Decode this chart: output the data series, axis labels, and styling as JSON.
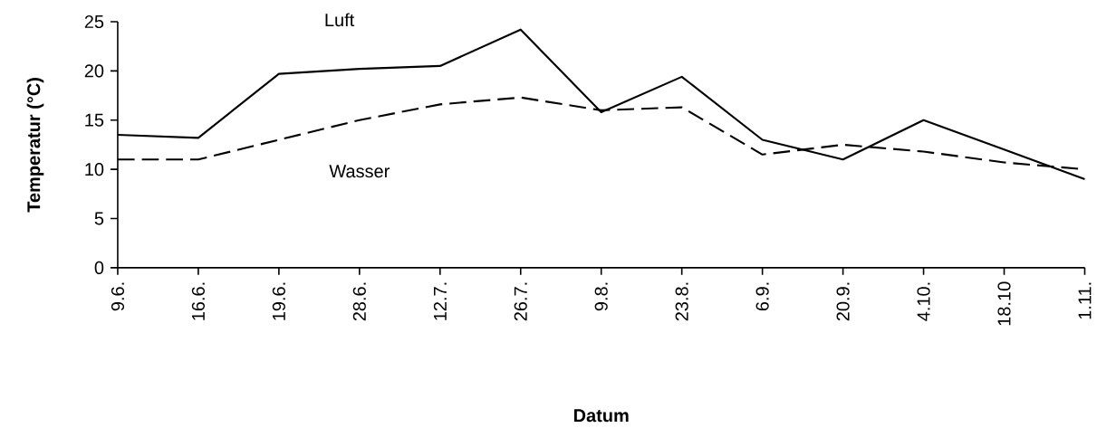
{
  "chart_data": {
    "type": "line",
    "xlabel": "Datum",
    "ylabel": "Temperatur   (°C)",
    "categories": [
      "9.6.",
      "16.6.",
      "19.6.",
      "28.6.",
      "12.7.",
      "26.7.",
      "9.8.",
      "23.8.",
      "6.9.",
      "20.9.",
      "4.10.",
      "18.10",
      "1.11."
    ],
    "series": [
      {
        "name": "Luft",
        "color": "#000000",
        "line_style": "solid",
        "values": [
          13.5,
          13.2,
          19.7,
          20.2,
          20.5,
          24.2,
          15.8,
          19.4,
          13,
          11,
          15,
          12,
          9
        ]
      },
      {
        "name": "Wasser",
        "color": "#000000",
        "line_style": "dashed",
        "values": [
          11,
          11,
          13,
          15,
          16.6,
          17.3,
          16,
          16.3,
          11.5,
          12.5,
          11.8,
          10.7,
          10
        ]
      }
    ],
    "ylim": [
      0,
      25
    ],
    "yticks": [
      0,
      5,
      10,
      15,
      20,
      25
    ],
    "grid": false,
    "legend": false,
    "marker": "none"
  }
}
